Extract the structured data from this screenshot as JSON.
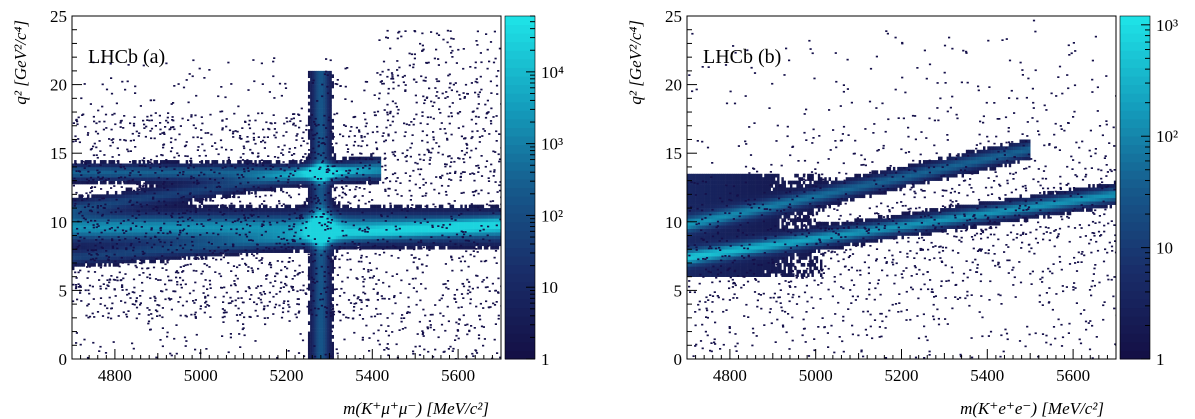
{
  "chart_data": [
    {
      "panel_label": "LHCb (a)",
      "type": "heatmap",
      "xlabel": "m(K⁺μ⁺μ⁻) [MeV/c²]",
      "ylabel": "q² [GeV²/c⁴]",
      "xlim": [
        4700,
        5700
      ],
      "ylim": [
        0,
        25
      ],
      "x_ticks": [
        4800,
        5000,
        5200,
        5400,
        5600
      ],
      "y_ticks": [
        0,
        5,
        10,
        15,
        20,
        25
      ],
      "colorbar": {
        "scale": "log",
        "range": [
          1,
          60000
        ],
        "tick_labels": [
          "1",
          "10",
          "10²",
          "10³",
          "10⁴"
        ],
        "tick_values": [
          1,
          10,
          100,
          1000,
          10000
        ]
      },
      "features": [
        {
          "kind": "horizontal_band",
          "q2_center": 9.6,
          "q2_halfwidth": 1.1,
          "x_range": [
            4700,
            5700
          ],
          "peak_at_x": 5280,
          "intensity": "very high"
        },
        {
          "kind": "horizontal_band",
          "q2_center": 13.6,
          "q2_halfwidth": 0.6,
          "x_range": [
            4700,
            5420
          ],
          "peak_at_x": 5280,
          "intensity": "high"
        },
        {
          "kind": "diagonal_band",
          "from": [
            4700,
            11.0
          ],
          "to": [
            5420,
            14.2
          ],
          "intensity": "medium"
        },
        {
          "kind": "diagonal_band",
          "from": [
            4700,
            7.4
          ],
          "to": [
            5700,
            9.9
          ],
          "intensity": "medium"
        },
        {
          "kind": "vertical_band",
          "x_center": 5280,
          "x_halfwidth": 25,
          "q2_range": [
            0,
            21
          ],
          "intensity": "high"
        }
      ]
    },
    {
      "panel_label": "LHCb (b)",
      "type": "heatmap",
      "xlabel": "m(K⁺e⁺e⁻) [MeV/c²]",
      "ylabel": "q² [GeV²/c⁴]",
      "xlim": [
        4700,
        5700
      ],
      "ylim": [
        0,
        25
      ],
      "x_ticks": [
        4800,
        5000,
        5200,
        5400,
        5600
      ],
      "y_ticks": [
        0,
        5,
        10,
        15,
        20,
        25
      ],
      "colorbar": {
        "scale": "log",
        "range": [
          1,
          1200
        ],
        "tick_labels": [
          "1",
          "10",
          "10²",
          "10³"
        ],
        "tick_values": [
          1,
          10,
          100,
          1000
        ]
      },
      "features": [
        {
          "kind": "diagonal_band",
          "from": [
            4700,
            7.4
          ],
          "to": [
            5700,
            12.0
          ],
          "intensity": "very high"
        },
        {
          "kind": "diagonal_band",
          "from": [
            4700,
            9.8
          ],
          "to": [
            5500,
            15.3
          ],
          "intensity": "high"
        },
        {
          "kind": "diffuse_region",
          "x_range": [
            4700,
            5100
          ],
          "q2_range": [
            6,
            13.5
          ],
          "intensity": "medium"
        }
      ]
    }
  ]
}
